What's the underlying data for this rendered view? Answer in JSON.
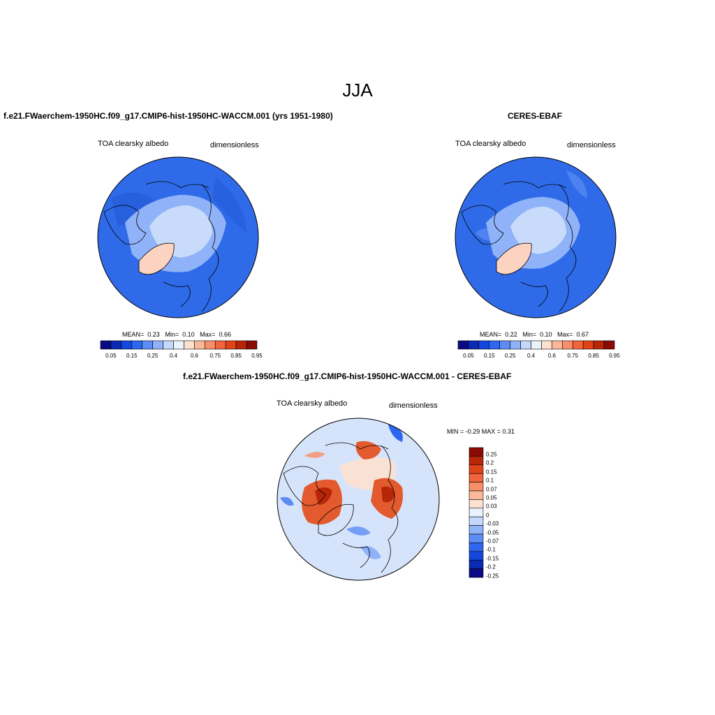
{
  "title": "JJA",
  "panels": {
    "model": {
      "title": "f.e21.FWaerchem-1950HC.f09_g17.CMIP6-hist-1950HC-WACCM.001 (yrs 1951-1980)",
      "variable": "TOA clearsky albedo",
      "units": "dimensionless",
      "stats": {
        "mean_label": "MEAN=",
        "mean": "0.23",
        "min_label": "Min=",
        "min": "0.10",
        "max_label": "Max=",
        "max": "0.66"
      }
    },
    "obs": {
      "title": "CERES-EBAF",
      "variable": "TOA clearsky albedo",
      "units": "dimensionless",
      "stats": {
        "mean_label": "MEAN=",
        "mean": "0.22",
        "min_label": "Min=",
        "min": "0.10",
        "max_label": "Max=",
        "max": "0.67"
      }
    },
    "diff": {
      "title": "f.e21.FWaerchem-1950HC.f09_g17.CMIP6-hist-1950HC-WACCM.001 - CERES-EBAF",
      "variable": "TOA clearsky albedo",
      "units": "dimensionless",
      "minmax": "MIN = -0.29 MAX = 0.31"
    }
  },
  "colorbars": {
    "main": {
      "ticks": [
        "0.05",
        "0.15",
        "0.25",
        "0.4",
        "0.6",
        "0.75",
        "0.85",
        "0.95"
      ],
      "colors": [
        "#0a0a84",
        "#0b2ab4",
        "#1448dc",
        "#2e66f0",
        "#5c8cf5",
        "#8fb2f8",
        "#c4d8fb",
        "#eaf2fd",
        "#fde0d0",
        "#fbb898",
        "#f78f68",
        "#f1643c",
        "#e04318",
        "#b82608",
        "#8c0a04"
      ]
    },
    "diff": {
      "ticks": [
        "0.25",
        "0.2",
        "0.15",
        "0.1",
        "0.07",
        "0.05",
        "0.03",
        "0",
        "-0.03",
        "-0.05",
        "-0.07",
        "-0.1",
        "-0.15",
        "-0.2",
        "-0.25"
      ],
      "colors": [
        "#8c0a04",
        "#b82608",
        "#e04318",
        "#f1643c",
        "#f78f68",
        "#fbb898",
        "#fde0d0",
        "#eaf2fd",
        "#c4d8fb",
        "#8fb2f8",
        "#5c8cf5",
        "#2e66f0",
        "#1448dc",
        "#0b2ab4",
        "#0a0a84"
      ]
    }
  },
  "map_colors": {
    "ocean_model": "#2f6be8",
    "ocean_obs": "#2f6be8",
    "ice_pale": "#c9dbfa",
    "ice_mid": "#8fb2f8",
    "greenland": "#fbd3c0",
    "diff_bg": "#d6e4fb",
    "diff_red": "#e35a2e",
    "diff_blue": "#2e66f0",
    "coast": "#000000"
  }
}
